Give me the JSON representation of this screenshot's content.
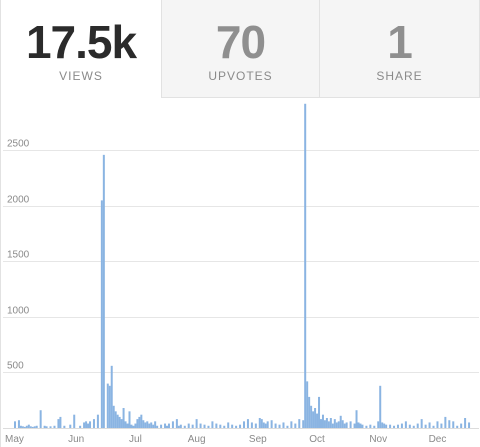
{
  "stats": {
    "views": {
      "value": "17.5k",
      "label": "VIEWS"
    },
    "upvotes": {
      "value": "70",
      "label": "UPVOTES"
    },
    "share": {
      "value": "1",
      "label": "SHARE"
    }
  },
  "colors": {
    "bar": "#8ab4e2",
    "grid": "#e6e6e6",
    "axis_text": "#8a8a8a",
    "active_value": "#2b2b2b",
    "inactive_value": "#8f8f8f"
  },
  "chart_data": {
    "type": "bar",
    "title": "",
    "xlabel": "",
    "ylabel": "",
    "ylim": [
      0,
      2900
    ],
    "yticks": [
      500,
      1000,
      1500,
      2000,
      2500
    ],
    "grid": true,
    "x_tick_labels": [
      "May",
      "Jun",
      "Jul",
      "Aug",
      "Sep",
      "Oct",
      "Nov",
      "Dec"
    ],
    "x_tick_days": [
      0,
      31,
      61,
      92,
      123,
      153,
      184,
      214
    ],
    "x_range_days": [
      0,
      232
    ],
    "x_start_month": "May",
    "series": [
      {
        "x_days": [
          0,
          2,
          3,
          4,
          5,
          6,
          7,
          8,
          9,
          10,
          11,
          13,
          15,
          16,
          18,
          20,
          22,
          23,
          25,
          28,
          30,
          33,
          35,
          36,
          37,
          38,
          40,
          42,
          44,
          45,
          47,
          48,
          49,
          50,
          51,
          52,
          53,
          54,
          55,
          56,
          57,
          58,
          59,
          60,
          61,
          62,
          63,
          64,
          65,
          66,
          67,
          68,
          69,
          70,
          71,
          72,
          74,
          76,
          77,
          78,
          80,
          82,
          83,
          84,
          86,
          88,
          90,
          92,
          94,
          96,
          98,
          100,
          102,
          104,
          106,
          108,
          110,
          112,
          114,
          116,
          118,
          120,
          122,
          124,
          125,
          126,
          127,
          128,
          130,
          132,
          134,
          136,
          138,
          140,
          142,
          144,
          146,
          147,
          148,
          149,
          150,
          151,
          152,
          153,
          154,
          155,
          156,
          157,
          158,
          159,
          160,
          161,
          162,
          163,
          164,
          165,
          166,
          167,
          168,
          170,
          172,
          173,
          174,
          175,
          176,
          178,
          180,
          182,
          184,
          185,
          186,
          187,
          188,
          190,
          192,
          194,
          196,
          198,
          200,
          202,
          204,
          206,
          208,
          210,
          212,
          214,
          216,
          218,
          220,
          222,
          224,
          226,
          228,
          230
        ],
        "values": [
          60,
          70,
          20,
          15,
          10,
          20,
          30,
          15,
          10,
          15,
          20,
          160,
          20,
          15,
          15,
          20,
          80,
          100,
          20,
          30,
          120,
          20,
          50,
          60,
          40,
          60,
          80,
          120,
          2050,
          2460,
          400,
          380,
          560,
          200,
          150,
          120,
          100,
          80,
          180,
          60,
          40,
          150,
          30,
          20,
          40,
          80,
          100,
          120,
          70,
          50,
          60,
          40,
          50,
          30,
          60,
          20,
          30,
          40,
          20,
          40,
          60,
          80,
          20,
          30,
          20,
          40,
          30,
          80,
          40,
          30,
          20,
          60,
          40,
          30,
          20,
          50,
          30,
          20,
          30,
          60,
          80,
          50,
          40,
          90,
          80,
          50,
          40,
          60,
          70,
          40,
          30,
          50,
          20,
          60,
          40,
          80,
          70,
          2920,
          420,
          280,
          200,
          150,
          180,
          130,
          280,
          80,
          120,
          70,
          90,
          60,
          90,
          40,
          80,
          50,
          60,
          110,
          70,
          40,
          50,
          60,
          40,
          160,
          50,
          40,
          30,
          20,
          30,
          20,
          60,
          380,
          50,
          40,
          30,
          30,
          20,
          30,
          40,
          60,
          30,
          20,
          40,
          80,
          30,
          50,
          20,
          60,
          40,
          100,
          70,
          60,
          20,
          40,
          90,
          50
        ]
      }
    ]
  }
}
